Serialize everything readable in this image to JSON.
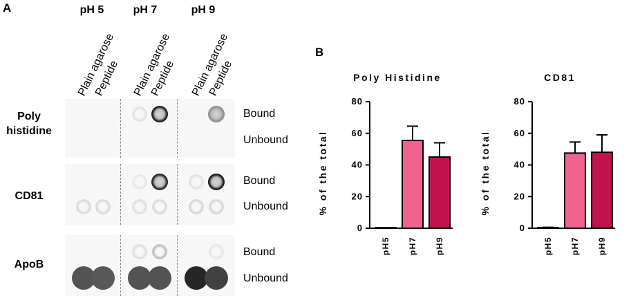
{
  "panel_a": {
    "letter": "A",
    "ph_headers": [
      "pH 5",
      "pH 7",
      "pH 9"
    ],
    "column_labels": [
      "Plain agarose",
      "Peptide",
      "Plain agarose",
      "Peptide",
      "Plain agarose",
      "Peptide"
    ],
    "rows": [
      {
        "label_lines": [
          "Poly",
          "histidine"
        ],
        "side_labels": [
          "Bound",
          "Unbound"
        ],
        "spots": [
          {
            "lane": 2,
            "position": "bound",
            "intensity": 0.08
          },
          {
            "lane": 3,
            "position": "bound",
            "intensity": 0.95,
            "ring": true
          },
          {
            "lane": 5,
            "position": "bound",
            "intensity": 0.45,
            "ring": true
          }
        ]
      },
      {
        "label_lines": [
          "CD81"
        ],
        "side_labels": [
          "Bound",
          "Unbound"
        ],
        "spots": [
          {
            "lane": 2,
            "position": "bound",
            "intensity": 0.06
          },
          {
            "lane": 3,
            "position": "bound",
            "intensity": 0.92,
            "ring": true
          },
          {
            "lane": 4,
            "position": "bound",
            "intensity": 0.08
          },
          {
            "lane": 5,
            "position": "bound",
            "intensity": 0.98,
            "ring": true
          },
          {
            "lane": 0,
            "position": "unbound",
            "intensity": 0.12
          },
          {
            "lane": 1,
            "position": "unbound",
            "intensity": 0.12
          },
          {
            "lane": 2,
            "position": "unbound",
            "intensity": 0.1
          },
          {
            "lane": 3,
            "position": "unbound",
            "intensity": 0.12
          },
          {
            "lane": 4,
            "position": "unbound",
            "intensity": 0.14
          },
          {
            "lane": 5,
            "position": "unbound",
            "intensity": 0.14
          }
        ]
      },
      {
        "label_lines": [
          "ApoB"
        ],
        "side_labels": [
          "Bound",
          "Unbound"
        ],
        "spots": [
          {
            "lane": 2,
            "position": "bound",
            "intensity": 0.1
          },
          {
            "lane": 3,
            "position": "bound",
            "intensity": 0.25
          },
          {
            "lane": 5,
            "position": "bound",
            "intensity": 0.06
          },
          {
            "lane": 0,
            "position": "unbound",
            "intensity": 0.72
          },
          {
            "lane": 1,
            "position": "unbound",
            "intensity": 0.7
          },
          {
            "lane": 2,
            "position": "unbound",
            "intensity": 0.72
          },
          {
            "lane": 3,
            "position": "unbound",
            "intensity": 0.72
          },
          {
            "lane": 4,
            "position": "unbound",
            "intensity": 0.92
          },
          {
            "lane": 5,
            "position": "unbound",
            "intensity": 0.8
          }
        ]
      }
    ]
  },
  "panel_b": {
    "letter": "B"
  },
  "colors": {
    "ph5": "#f2628f",
    "ph7": "#f2628f",
    "ph9": "#c2134f",
    "axis": "#000000"
  },
  "chart_data": [
    {
      "type": "bar",
      "title": "Poly Histidine",
      "ylabel": "% of the total",
      "categories": [
        "pH5",
        "pH7",
        "pH9"
      ],
      "values": [
        0,
        55.5,
        45
      ],
      "error": [
        0,
        9,
        9
      ],
      "ylim": [
        0,
        80
      ],
      "yticks": [
        "0",
        "20",
        "40",
        "60",
        "80"
      ],
      "grid": false
    },
    {
      "type": "bar",
      "title": "CD81",
      "ylabel": "% of the total",
      "categories": [
        "pH5",
        "pH7",
        "pH9"
      ],
      "values": [
        0.3,
        47.5,
        48
      ],
      "error": [
        0.3,
        7,
        11
      ],
      "ylim": [
        0,
        80
      ],
      "yticks": [
        "0",
        "20",
        "40",
        "60",
        "80"
      ],
      "grid": false
    }
  ]
}
